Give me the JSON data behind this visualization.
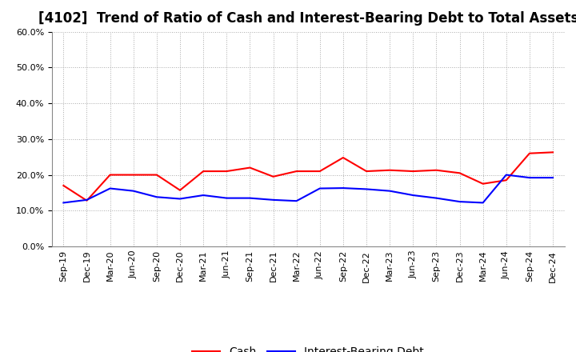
{
  "title": "[4102]  Trend of Ratio of Cash and Interest-Bearing Debt to Total Assets",
  "x_labels": [
    "Sep-19",
    "Dec-19",
    "Mar-20",
    "Jun-20",
    "Sep-20",
    "Dec-20",
    "Mar-21",
    "Jun-21",
    "Sep-21",
    "Dec-21",
    "Mar-22",
    "Jun-22",
    "Sep-22",
    "Dec-22",
    "Mar-23",
    "Jun-23",
    "Sep-23",
    "Dec-23",
    "Mar-24",
    "Jun-24",
    "Sep-24",
    "Dec-24"
  ],
  "cash": [
    0.17,
    0.128,
    0.2,
    0.2,
    0.2,
    0.157,
    0.21,
    0.21,
    0.22,
    0.195,
    0.21,
    0.21,
    0.248,
    0.21,
    0.213,
    0.21,
    0.213,
    0.205,
    0.175,
    0.185,
    0.26,
    0.263
  ],
  "ibd": [
    0.122,
    0.13,
    0.162,
    0.155,
    0.138,
    0.133,
    0.143,
    0.135,
    0.135,
    0.13,
    0.127,
    0.162,
    0.163,
    0.16,
    0.155,
    0.143,
    0.135,
    0.125,
    0.122,
    0.2,
    0.192,
    0.192
  ],
  "cash_color": "#ff0000",
  "ibd_color": "#0000ff",
  "ylim": [
    0.0,
    0.6
  ],
  "yticks": [
    0.0,
    0.1,
    0.2,
    0.3,
    0.4,
    0.5,
    0.6
  ],
  "background_color": "#ffffff",
  "grid_color": "#aaaaaa",
  "title_fontsize": 12,
  "legend_fontsize": 10,
  "tick_fontsize": 8
}
